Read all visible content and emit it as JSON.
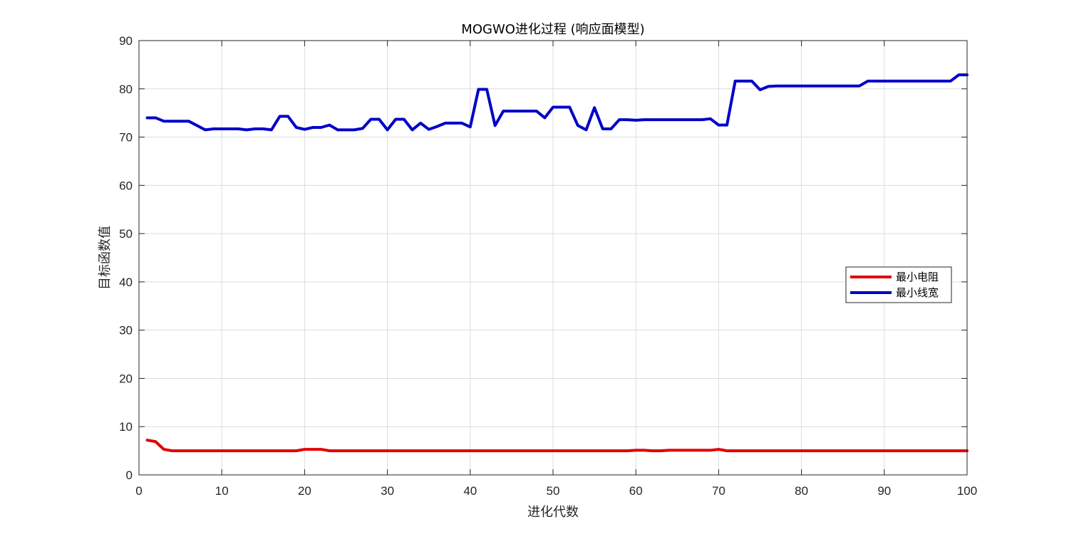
{
  "chart_data": {
    "type": "line",
    "title": "MOGWO进化过程 (响应面模型)",
    "xlabel": "进化代数",
    "ylabel": "目标函数值",
    "xlim": [
      0,
      100
    ],
    "ylim": [
      0,
      90
    ],
    "xticks": [
      0,
      10,
      20,
      30,
      40,
      50,
      60,
      70,
      80,
      90,
      100
    ],
    "yticks": [
      0,
      10,
      20,
      30,
      40,
      50,
      60,
      70,
      80,
      90
    ],
    "grid": true,
    "legend_position": "right",
    "x": [
      1,
      2,
      3,
      4,
      5,
      6,
      7,
      8,
      9,
      10,
      11,
      12,
      13,
      14,
      15,
      16,
      17,
      18,
      19,
      20,
      21,
      22,
      23,
      24,
      25,
      26,
      27,
      28,
      29,
      30,
      31,
      32,
      33,
      34,
      35,
      36,
      37,
      38,
      39,
      40,
      41,
      42,
      43,
      44,
      45,
      46,
      47,
      48,
      49,
      50,
      51,
      52,
      53,
      54,
      55,
      56,
      57,
      58,
      59,
      60,
      61,
      62,
      63,
      64,
      65,
      66,
      67,
      68,
      69,
      70,
      71,
      72,
      73,
      74,
      75,
      76,
      77,
      78,
      79,
      80,
      81,
      82,
      83,
      84,
      85,
      86,
      87,
      88,
      89,
      90,
      91,
      92,
      93,
      94,
      95,
      96,
      97,
      98,
      99,
      100
    ],
    "series": [
      {
        "name": "最小电阻",
        "color": "#e00000",
        "values": [
          7.2,
          6.9,
          5.3,
          5.0,
          5.0,
          5.0,
          5.0,
          5.0,
          5.0,
          5.0,
          5.0,
          5.0,
          5.0,
          5.0,
          5.0,
          5.0,
          5.0,
          5.0,
          5.0,
          5.3,
          5.3,
          5.3,
          5.0,
          5.0,
          5.0,
          5.0,
          5.0,
          5.0,
          5.0,
          5.0,
          5.0,
          5.0,
          5.0,
          5.0,
          5.0,
          5.0,
          5.0,
          5.0,
          5.0,
          5.0,
          5.0,
          5.0,
          5.0,
          5.0,
          5.0,
          5.0,
          5.0,
          5.0,
          5.0,
          5.0,
          5.0,
          5.0,
          5.0,
          5.0,
          5.0,
          5.0,
          5.0,
          5.0,
          5.0,
          5.1,
          5.1,
          5.0,
          5.0,
          5.1,
          5.1,
          5.1,
          5.1,
          5.1,
          5.1,
          5.3,
          5.0,
          5.0,
          5.0,
          5.0,
          5.0,
          5.0,
          5.0,
          5.0,
          5.0,
          5.0,
          5.0,
          5.0,
          5.0,
          5.0,
          5.0,
          5.0,
          5.0,
          5.0,
          5.0,
          5.0,
          5.0,
          5.0,
          5.0,
          5.0,
          5.0,
          5.0,
          5.0,
          5.0,
          5.0,
          5.0
        ]
      },
      {
        "name": "最小线宽",
        "color": "#0000c8",
        "values": [
          74.0,
          74.0,
          73.3,
          73.3,
          73.3,
          73.3,
          72.4,
          71.5,
          71.7,
          71.7,
          71.7,
          71.7,
          71.5,
          71.7,
          71.7,
          71.5,
          74.3,
          74.3,
          72.0,
          71.6,
          72.0,
          72.0,
          72.5,
          71.5,
          71.5,
          71.5,
          71.8,
          73.7,
          73.7,
          71.5,
          73.7,
          73.7,
          71.5,
          72.9,
          71.6,
          72.2,
          72.9,
          72.9,
          72.9,
          72.1,
          79.9,
          79.9,
          72.4,
          75.4,
          75.4,
          75.4,
          75.4,
          75.4,
          74.0,
          76.2,
          76.2,
          76.2,
          72.4,
          71.5,
          76.1,
          71.7,
          71.7,
          73.6,
          73.6,
          73.5,
          73.6,
          73.6,
          73.6,
          73.6,
          73.6,
          73.6,
          73.6,
          73.6,
          73.8,
          72.5,
          72.5,
          81.6,
          81.6,
          81.6,
          79.8,
          80.5,
          80.6,
          80.6,
          80.6,
          80.6,
          80.6,
          80.6,
          80.6,
          80.6,
          80.6,
          80.6,
          80.6,
          81.6,
          81.6,
          81.6,
          81.6,
          81.6,
          81.6,
          81.6,
          81.6,
          81.6,
          81.6,
          81.6,
          82.9,
          82.9
        ]
      }
    ]
  }
}
